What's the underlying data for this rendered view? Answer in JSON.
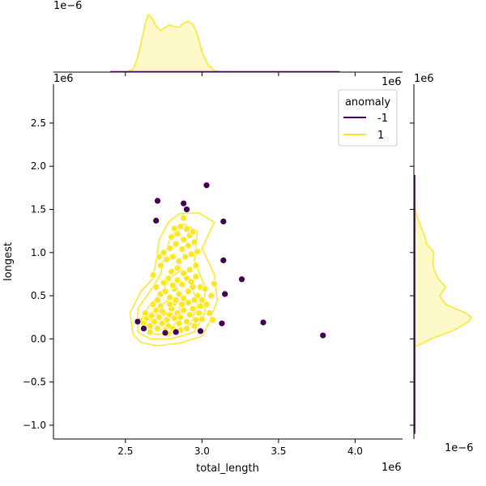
{
  "chart_data": {
    "type": "scatter",
    "xlabel": "total_length",
    "ylabel": "longest",
    "x_offset_label": "1e6",
    "y_offset_label": "1e6",
    "top_marginal_offset_label": "1e−6",
    "right_marginal_offset_label": "1e−6",
    "xlim": [
      2.03,
      4.31
    ],
    "ylim": [
      -1.16,
      2.95
    ],
    "x_ticks": [
      2.5,
      3.0,
      3.5,
      4.0
    ],
    "x_tick_labels": [
      "2.5",
      "3.0",
      "3.5",
      "4.0"
    ],
    "y_ticks": [
      -1.0,
      -0.5,
      0.0,
      0.5,
      1.0,
      1.5,
      2.0,
      2.5
    ],
    "y_tick_labels": [
      "−1.0",
      "−0.5",
      "0.0",
      "0.5",
      "1.0",
      "1.5",
      "2.0",
      "2.5"
    ],
    "grid": false,
    "legend": {
      "title": "anomaly",
      "position": "top-right",
      "entries": [
        {
          "label": "-1",
          "color": "#440154"
        },
        {
          "label": "1",
          "color": "#fde725"
        }
      ]
    },
    "colors": {
      "anomaly": "#440154",
      "normal": "#fde725",
      "normal_edge": "#ffffff"
    },
    "series": [
      {
        "name": "-1",
        "color": "#440154",
        "points": [
          [
            2.71,
            1.6
          ],
          [
            2.88,
            1.57
          ],
          [
            2.9,
            1.5
          ],
          [
            3.03,
            1.78
          ],
          [
            2.7,
            1.37
          ],
          [
            3.14,
            1.36
          ],
          [
            3.14,
            0.91
          ],
          [
            3.26,
            0.69
          ],
          [
            3.15,
            0.52
          ],
          [
            3.4,
            0.19
          ],
          [
            3.79,
            0.04
          ],
          [
            3.13,
            0.18
          ],
          [
            2.99,
            0.09
          ],
          [
            2.83,
            0.08
          ],
          [
            2.76,
            0.07
          ],
          [
            2.62,
            0.12
          ],
          [
            2.58,
            0.2
          ]
        ]
      },
      {
        "name": "1",
        "color": "#fde725",
        "points": [
          [
            2.6,
            0.21
          ],
          [
            2.62,
            0.18
          ],
          [
            2.64,
            0.24
          ],
          [
            2.66,
            0.15
          ],
          [
            2.63,
            0.3
          ],
          [
            2.67,
            0.27
          ],
          [
            2.69,
            0.2
          ],
          [
            2.7,
            0.33
          ],
          [
            2.72,
            0.25
          ],
          [
            2.74,
            0.18
          ],
          [
            2.68,
            0.4
          ],
          [
            2.71,
            0.45
          ],
          [
            2.73,
            0.38
          ],
          [
            2.75,
            0.3
          ],
          [
            2.77,
            0.22
          ],
          [
            2.79,
            0.28
          ],
          [
            2.78,
            0.15
          ],
          [
            2.8,
            0.35
          ],
          [
            2.82,
            0.42
          ],
          [
            2.84,
            0.3
          ],
          [
            2.86,
            0.25
          ],
          [
            2.88,
            0.33
          ],
          [
            2.9,
            0.2
          ],
          [
            2.92,
            0.28
          ],
          [
            2.94,
            0.35
          ],
          [
            2.96,
            0.22
          ],
          [
            2.98,
            0.3
          ],
          [
            2.85,
            0.18
          ],
          [
            2.81,
            0.12
          ],
          [
            2.76,
            0.1
          ],
          [
            2.73,
            0.52
          ],
          [
            2.76,
            0.55
          ],
          [
            2.79,
            0.48
          ],
          [
            2.82,
            0.58
          ],
          [
            2.85,
            0.52
          ],
          [
            2.88,
            0.47
          ],
          [
            2.91,
            0.55
          ],
          [
            2.94,
            0.6
          ],
          [
            2.97,
            0.5
          ],
          [
            3.0,
            0.45
          ],
          [
            2.75,
            0.65
          ],
          [
            2.78,
            0.7
          ],
          [
            2.81,
            0.62
          ],
          [
            2.84,
            0.68
          ],
          [
            2.87,
            0.63
          ],
          [
            2.9,
            0.7
          ],
          [
            2.93,
            0.66
          ],
          [
            2.96,
            0.72
          ],
          [
            2.99,
            0.6
          ],
          [
            3.02,
            0.58
          ],
          [
            2.79,
            0.4
          ],
          [
            2.83,
            0.45
          ],
          [
            2.87,
            0.4
          ],
          [
            2.91,
            0.42
          ],
          [
            2.95,
            0.45
          ],
          [
            2.99,
            0.38
          ],
          [
            3.03,
            0.4
          ],
          [
            3.06,
            0.5
          ],
          [
            3.08,
            0.64
          ],
          [
            3.05,
            0.3
          ],
          [
            2.8,
            0.78
          ],
          [
            2.84,
            0.82
          ],
          [
            2.88,
            0.76
          ],
          [
            2.92,
            0.8
          ],
          [
            2.96,
            0.85
          ],
          [
            2.77,
            0.92
          ],
          [
            2.81,
            0.95
          ],
          [
            2.85,
            0.9
          ],
          [
            2.89,
            0.95
          ],
          [
            2.93,
            0.98
          ],
          [
            2.75,
            1.0
          ],
          [
            2.79,
            1.05
          ],
          [
            2.83,
            1.1
          ],
          [
            2.87,
            1.04
          ],
          [
            2.91,
            1.08
          ],
          [
            2.95,
            1.12
          ],
          [
            2.8,
            1.18
          ],
          [
            2.84,
            1.22
          ],
          [
            2.88,
            1.15
          ],
          [
            2.92,
            1.2
          ],
          [
            2.86,
            1.3
          ],
          [
            2.9,
            1.27
          ],
          [
            2.94,
            1.24
          ],
          [
            2.82,
            1.28
          ],
          [
            2.88,
            1.4
          ],
          [
            2.73,
            0.85
          ],
          [
            2.72,
            0.95
          ],
          [
            2.7,
            0.6
          ],
          [
            2.68,
            0.74
          ],
          [
            2.97,
            1.01
          ],
          [
            2.74,
            0.32
          ],
          [
            2.71,
            0.12
          ],
          [
            2.66,
            0.08
          ],
          [
            2.78,
            0.06
          ],
          [
            2.86,
            0.1
          ],
          [
            2.82,
            0.24
          ],
          [
            2.9,
            0.12
          ],
          [
            2.95,
            0.15
          ],
          [
            3.0,
            0.23
          ],
          [
            3.07,
            0.22
          ]
        ]
      }
    ],
    "kde_contours_class_1": [
      [
        [
          2.55,
          0.05
        ],
        [
          2.6,
          -0.04
        ],
        [
          2.7,
          -0.08
        ],
        [
          2.85,
          -0.05
        ],
        [
          3.0,
          0.03
        ],
        [
          3.05,
          0.2
        ],
        [
          3.1,
          0.45
        ],
        [
          3.08,
          0.75
        ],
        [
          3.0,
          1.05
        ],
        [
          3.08,
          1.35
        ],
        [
          2.98,
          1.46
        ],
        [
          2.85,
          1.45
        ],
        [
          2.78,
          1.35
        ],
        [
          2.72,
          1.15
        ],
        [
          2.7,
          0.9
        ],
        [
          2.68,
          0.7
        ],
        [
          2.6,
          0.55
        ],
        [
          2.53,
          0.3
        ],
        [
          2.55,
          0.05
        ]
      ],
      [
        [
          2.58,
          0.08
        ],
        [
          2.66,
          0.0
        ],
        [
          2.8,
          0.0
        ],
        [
          2.95,
          0.08
        ],
        [
          3.02,
          0.3
        ],
        [
          3.02,
          0.6
        ],
        [
          2.95,
          0.9
        ],
        [
          2.97,
          1.25
        ],
        [
          2.88,
          1.33
        ],
        [
          2.8,
          1.2
        ],
        [
          2.76,
          1.0
        ],
        [
          2.73,
          0.75
        ],
        [
          2.66,
          0.55
        ],
        [
          2.58,
          0.35
        ],
        [
          2.58,
          0.08
        ]
      ],
      [
        [
          2.61,
          0.12
        ],
        [
          2.7,
          0.05
        ],
        [
          2.82,
          0.07
        ],
        [
          2.93,
          0.18
        ],
        [
          2.97,
          0.4
        ],
        [
          2.93,
          0.62
        ],
        [
          2.87,
          0.8
        ],
        [
          2.8,
          0.72
        ],
        [
          2.74,
          0.55
        ],
        [
          2.66,
          0.4
        ],
        [
          2.61,
          0.25
        ],
        [
          2.61,
          0.12
        ]
      ],
      [
        [
          2.64,
          0.15
        ],
        [
          2.72,
          0.1
        ],
        [
          2.8,
          0.13
        ],
        [
          2.86,
          0.25
        ],
        [
          2.85,
          0.42
        ],
        [
          2.78,
          0.45
        ],
        [
          2.7,
          0.35
        ],
        [
          2.64,
          0.25
        ],
        [
          2.64,
          0.15
        ]
      ],
      [
        [
          2.66,
          0.17
        ],
        [
          2.72,
          0.14
        ],
        [
          2.77,
          0.18
        ],
        [
          2.78,
          0.28
        ],
        [
          2.72,
          0.3
        ],
        [
          2.67,
          0.24
        ],
        [
          2.66,
          0.17
        ]
      ]
    ],
    "top_marginal_density": {
      "x": [
        2.5,
        2.55,
        2.58,
        2.61,
        2.63,
        2.65,
        2.67,
        2.7,
        2.73,
        2.76,
        2.79,
        2.82,
        2.85,
        2.88,
        2.91,
        2.94,
        2.97,
        3.0,
        3.04,
        3.08,
        3.12,
        3.2
      ],
      "density": [
        0.0,
        0.05,
        0.25,
        0.6,
        0.85,
        1.0,
        0.95,
        0.8,
        0.72,
        0.78,
        0.82,
        0.79,
        0.78,
        0.85,
        0.88,
        0.84,
        0.65,
        0.35,
        0.12,
        0.03,
        0.01,
        0.0
      ]
    },
    "right_marginal_density": {
      "y": [
        -0.1,
        0.0,
        0.1,
        0.2,
        0.25,
        0.3,
        0.4,
        0.5,
        0.6,
        0.7,
        0.8,
        0.9,
        1.0,
        1.1,
        1.2,
        1.3,
        1.4,
        1.5,
        1.6
      ],
      "density": [
        0.0,
        0.3,
        0.7,
        0.95,
        1.0,
        0.9,
        0.55,
        0.45,
        0.55,
        0.42,
        0.35,
        0.33,
        0.35,
        0.22,
        0.18,
        0.12,
        0.06,
        0.02,
        0.0
      ]
    }
  }
}
